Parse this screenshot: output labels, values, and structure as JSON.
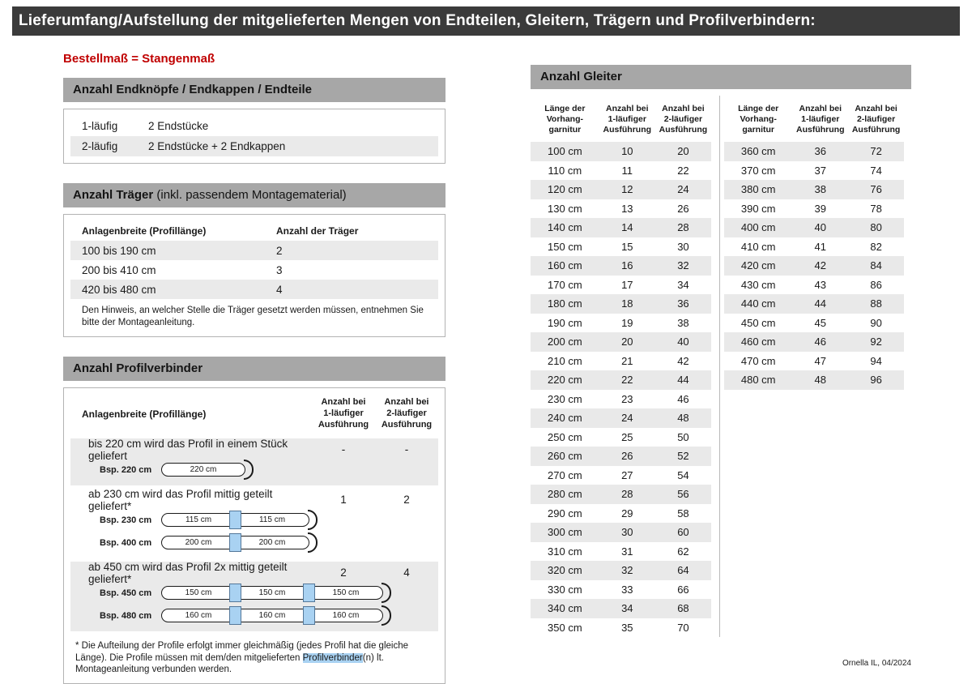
{
  "colors": {
    "title_bar": "#3b3b3b",
    "section_bar": "#a7a7a7",
    "accent_red": "#c00000",
    "row_stripe": "#eaeaea",
    "highlight_blue": "#a9d2f2"
  },
  "page": {
    "title": "Lieferumfang/Aufstellung der mitgelieferten Mengen von Endteilen, Gleitern, Trägern und Profilverbindern:",
    "footer": "Ornella IL, 04/2024"
  },
  "order_note": "Bestellmaß = Stangenmaß",
  "endteile": {
    "title": "Anzahl Endknöpfe / Endkappen / Endteile",
    "rows": [
      {
        "label": "1-läufig",
        "value": "2 Endstücke"
      },
      {
        "label": "2-läufig",
        "value": "2 Endstücke + 2 Endkappen"
      }
    ]
  },
  "traeger": {
    "title": "Anzahl Träger",
    "title_suffix": " (inkl. passendem Montagematerial)",
    "col_width": "Anlagenbreite (Profillänge)",
    "col_count": "Anzahl der Träger",
    "rows": [
      {
        "range": "100 bis 190 cm",
        "count": "2"
      },
      {
        "range": "200 bis 410 cm",
        "count": "3"
      },
      {
        "range": "420 bis 480 cm",
        "count": "4"
      }
    ],
    "note": "Den Hinweis, an welcher Stelle die Träger gesetzt werden müssen, entnehmen Sie bitte der Montageanleitung."
  },
  "profilverbinder": {
    "title": "Anzahl Profilverbinder",
    "col_width": "Anlagenbreite (Profillänge)",
    "col_one": "Anzahl bei\n1-läufiger\nAusführung",
    "col_two": "Anzahl bei\n2-läufiger\nAusführung",
    "groups": [
      {
        "text": "bis 220 cm wird das Profil in einem Stück geliefert",
        "count_one": "-",
        "count_two": "-",
        "examples": [
          {
            "label": "Bsp. 220 cm",
            "segments": [
              "220 cm"
            ]
          }
        ]
      },
      {
        "text": "ab 230 cm wird das Profil mittig geteilt geliefert*",
        "count_one": "1",
        "count_two": "2",
        "examples": [
          {
            "label": "Bsp. 230 cm",
            "segments": [
              "115 cm",
              "115 cm"
            ]
          },
          {
            "label": "Bsp. 400 cm",
            "segments": [
              "200 cm",
              "200 cm"
            ]
          }
        ]
      },
      {
        "text": "ab 450 cm wird das Profil 2x mittig geteilt geliefert*",
        "count_one": "2",
        "count_two": "4",
        "examples": [
          {
            "label": "Bsp. 450 cm",
            "segments": [
              "150 cm",
              "150 cm",
              "150 cm"
            ]
          },
          {
            "label": "Bsp. 480 cm",
            "segments": [
              "160 cm",
              "160 cm",
              "160 cm"
            ]
          }
        ]
      }
    ],
    "footnote_pre": "* Die Aufteilung der Profile erfolgt immer gleichmäßig (jedes Profil hat die gleiche Länge). Die Profile müssen mit dem/den mitgelieferten ",
    "footnote_highlight": "Profilverbinder",
    "footnote_post": "(n) lt. Montageanleitung verbunden werden."
  },
  "gleiter": {
    "title": "Anzahl Gleiter",
    "col_length": "Länge der\nVorhang-\ngarnitur",
    "col_one": "Anzahl bei\n1-läufiger\nAusführung",
    "col_two": "Anzahl bei\n2-läufiger\nAusführung",
    "table1": [
      [
        "100 cm",
        "10",
        "20"
      ],
      [
        "110 cm",
        "11",
        "22"
      ],
      [
        "120 cm",
        "12",
        "24"
      ],
      [
        "130 cm",
        "13",
        "26"
      ],
      [
        "140 cm",
        "14",
        "28"
      ],
      [
        "150 cm",
        "15",
        "30"
      ],
      [
        "160 cm",
        "16",
        "32"
      ],
      [
        "170 cm",
        "17",
        "34"
      ],
      [
        "180 cm",
        "18",
        "36"
      ],
      [
        "190 cm",
        "19",
        "38"
      ],
      [
        "200 cm",
        "20",
        "40"
      ],
      [
        "210 cm",
        "21",
        "42"
      ],
      [
        "220 cm",
        "22",
        "44"
      ],
      [
        "230 cm",
        "23",
        "46"
      ],
      [
        "240 cm",
        "24",
        "48"
      ],
      [
        "250 cm",
        "25",
        "50"
      ],
      [
        "260 cm",
        "26",
        "52"
      ],
      [
        "270 cm",
        "27",
        "54"
      ],
      [
        "280 cm",
        "28",
        "56"
      ],
      [
        "290 cm",
        "29",
        "58"
      ],
      [
        "300 cm",
        "30",
        "60"
      ],
      [
        "310 cm",
        "31",
        "62"
      ],
      [
        "320 cm",
        "32",
        "64"
      ],
      [
        "330 cm",
        "33",
        "66"
      ],
      [
        "340 cm",
        "34",
        "68"
      ],
      [
        "350 cm",
        "35",
        "70"
      ]
    ],
    "table2": [
      [
        "360 cm",
        "36",
        "72"
      ],
      [
        "370 cm",
        "37",
        "74"
      ],
      [
        "380 cm",
        "38",
        "76"
      ],
      [
        "390 cm",
        "39",
        "78"
      ],
      [
        "400 cm",
        "40",
        "80"
      ],
      [
        "410 cm",
        "41",
        "82"
      ],
      [
        "420 cm",
        "42",
        "84"
      ],
      [
        "430 cm",
        "43",
        "86"
      ],
      [
        "440 cm",
        "44",
        "88"
      ],
      [
        "450 cm",
        "45",
        "90"
      ],
      [
        "460 cm",
        "46",
        "92"
      ],
      [
        "470 cm",
        "47",
        "94"
      ],
      [
        "480 cm",
        "48",
        "96"
      ]
    ]
  }
}
